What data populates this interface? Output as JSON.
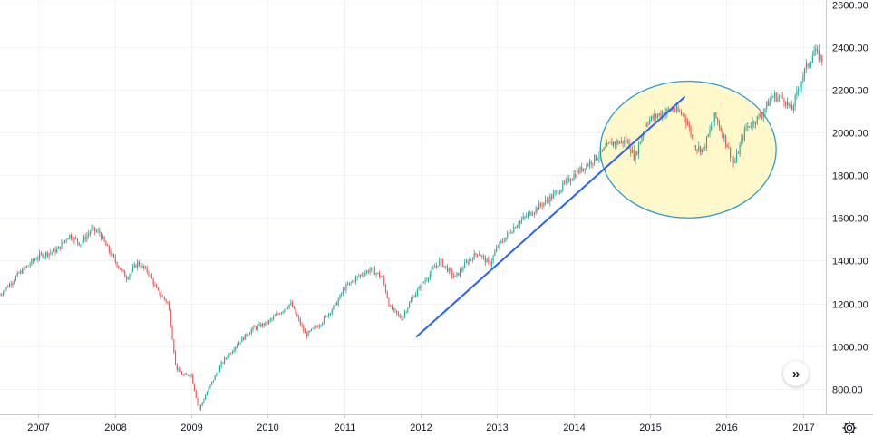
{
  "chart_data": {
    "type": "candlestick",
    "title": "",
    "xlabel": "",
    "ylabel": "",
    "ylim": [
      680,
      2620
    ],
    "xlim": [
      2006.5,
      2017.3
    ],
    "y_ticks": [
      "800.00",
      "1000.00",
      "1200.00",
      "1400.00",
      "1600.00",
      "1800.00",
      "2000.00",
      "2200.00",
      "2400.00",
      "2600.00"
    ],
    "x_ticks": [
      "2007",
      "2008",
      "2009",
      "2010",
      "2011",
      "2012",
      "2013",
      "2014",
      "2015",
      "2016",
      "2017"
    ],
    "grid": true,
    "colors": {
      "up": "#26a69a",
      "down": "#ef5350",
      "trendline": "#2962ff",
      "ellipse_stroke": "#2f9bd6",
      "ellipse_fill": "#fff7c2",
      "grid": "#f0f3fa"
    },
    "price_path": [
      [
        2006.5,
        1240
      ],
      [
        2006.75,
        1340
      ],
      [
        2007.0,
        1420
      ],
      [
        2007.25,
        1450
      ],
      [
        2007.4,
        1520
      ],
      [
        2007.55,
        1480
      ],
      [
        2007.7,
        1545
      ],
      [
        2007.8,
        1530
      ],
      [
        2007.9,
        1460
      ],
      [
        2008.0,
        1400
      ],
      [
        2008.15,
        1320
      ],
      [
        2008.3,
        1390
      ],
      [
        2008.45,
        1340
      ],
      [
        2008.55,
        1260
      ],
      [
        2008.7,
        1200
      ],
      [
        2008.8,
        900
      ],
      [
        2008.9,
        860
      ],
      [
        2009.0,
        870
      ],
      [
        2009.1,
        700
      ],
      [
        2009.2,
        780
      ],
      [
        2009.4,
        920
      ],
      [
        2009.6,
        1010
      ],
      [
        2009.8,
        1080
      ],
      [
        2010.0,
        1110
      ],
      [
        2010.3,
        1200
      ],
      [
        2010.5,
        1050
      ],
      [
        2010.7,
        1110
      ],
      [
        2010.9,
        1200
      ],
      [
        2011.0,
        1270
      ],
      [
        2011.2,
        1330
      ],
      [
        2011.35,
        1360
      ],
      [
        2011.5,
        1320
      ],
      [
        2011.6,
        1180
      ],
      [
        2011.75,
        1130
      ],
      [
        2011.9,
        1230
      ],
      [
        2012.0,
        1280
      ],
      [
        2012.25,
        1400
      ],
      [
        2012.45,
        1320
      ],
      [
        2012.6,
        1390
      ],
      [
        2012.75,
        1440
      ],
      [
        2012.9,
        1380
      ],
      [
        2013.0,
        1460
      ],
      [
        2013.25,
        1570
      ],
      [
        2013.5,
        1640
      ],
      [
        2013.75,
        1710
      ],
      [
        2014.0,
        1800
      ],
      [
        2014.25,
        1870
      ],
      [
        2014.5,
        1950
      ],
      [
        2014.7,
        1960
      ],
      [
        2014.8,
        1880
      ],
      [
        2014.95,
        2050
      ],
      [
        2015.15,
        2090
      ],
      [
        2015.3,
        2110
      ],
      [
        2015.45,
        2080
      ],
      [
        2015.6,
        1930
      ],
      [
        2015.7,
        1920
      ],
      [
        2015.85,
        2080
      ],
      [
        2016.0,
        1950
      ],
      [
        2016.1,
        1850
      ],
      [
        2016.25,
        2020
      ],
      [
        2016.45,
        2080
      ],
      [
        2016.6,
        2170
      ],
      [
        2016.75,
        2160
      ],
      [
        2016.85,
        2100
      ],
      [
        2017.0,
        2270
      ],
      [
        2017.15,
        2380
      ],
      [
        2017.25,
        2340
      ]
    ],
    "annotations": [
      {
        "type": "trendline",
        "from": [
          2011.95,
          1045
        ],
        "to": [
          2015.45,
          2165
        ]
      },
      {
        "type": "ellipse",
        "x_range": [
          2014.35,
          2016.65
        ],
        "y_range": [
          1600,
          2240
        ]
      }
    ]
  },
  "controls": {
    "scroll_right_icon": "double-chevron-right-icon",
    "scroll_right_glyph": "»",
    "settings_icon": "gear-icon"
  }
}
